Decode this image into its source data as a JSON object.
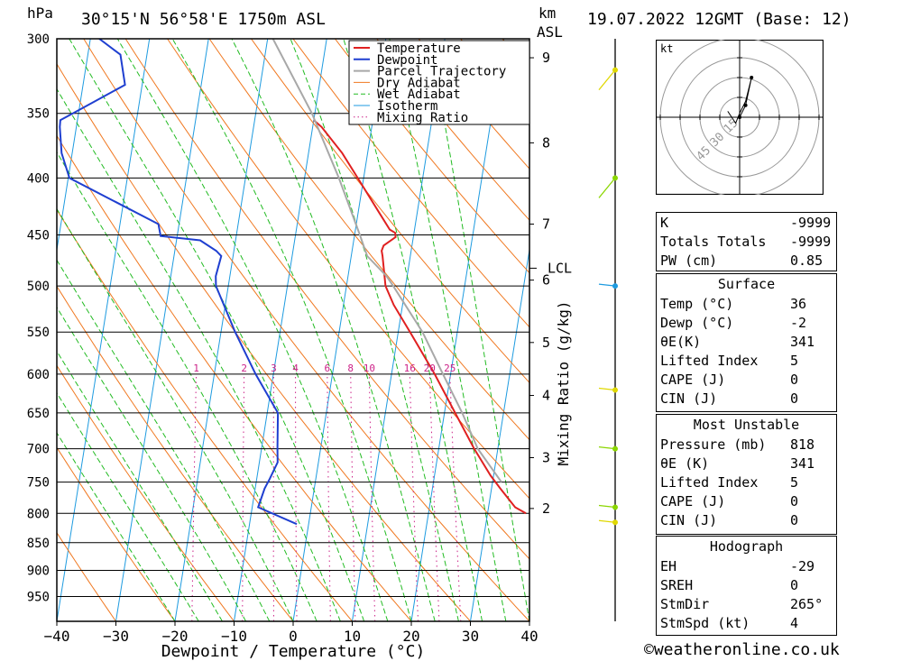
{
  "header": {
    "pressure_unit": "hPa",
    "location": "30°15'N  56°58'E  1750m  ASL",
    "km_unit": "km",
    "asl": "ASL",
    "datetime": "19.07.2022  12GMT  (Base: 12)"
  },
  "chart_data": {
    "type": "line",
    "title": "30°15'N 56°58'E 1750m ASL",
    "xlabel": "Dewpoint / Temperature (°C)",
    "ylabel": "hPa",
    "xlim": [
      -40,
      40
    ],
    "ylim": [
      1000,
      300
    ],
    "skew_per_decade": 30,
    "x_ticks": [
      -40,
      -30,
      -20,
      -10,
      0,
      10,
      20,
      30,
      40
    ],
    "x_tick_labels": [
      "−40",
      "−30",
      "−20",
      "−10",
      "0",
      "10",
      "20",
      "30",
      "40"
    ],
    "pressure_levels": [
      300,
      350,
      400,
      450,
      500,
      550,
      600,
      650,
      700,
      750,
      800,
      850,
      900,
      950
    ],
    "km_labels": [
      {
        "p": 312,
        "label": "9"
      },
      {
        "p": 372,
        "label": "8"
      },
      {
        "p": 440,
        "label": "7"
      },
      {
        "p": 494,
        "label": "6"
      },
      {
        "p": 562,
        "label": "5"
      },
      {
        "p": 627,
        "label": "4"
      },
      {
        "p": 713,
        "label": "3"
      },
      {
        "p": 792,
        "label": "2"
      }
    ],
    "lcl": {
      "p": 482,
      "label": "LCL"
    },
    "mixing_ratio_label": "Mixing Ratio (g/kg)",
    "mixing_ratios": [
      1,
      2,
      3,
      4,
      6,
      8,
      10,
      16,
      20,
      25
    ],
    "mixing_ratio_labels": [
      "1",
      "2",
      "3",
      "4",
      "6",
      "8",
      "10",
      "16",
      "20",
      "25"
    ],
    "legend": [
      "Temperature",
      "Dewpoint",
      "Parcel Trajectory",
      "Dry Adiabat",
      "Wet Adiabat",
      "Isotherm",
      "Mixing Ratio"
    ],
    "colors": {
      "temperature": "#e02020",
      "dewpoint": "#1f3fd0",
      "parcel": "#a8a8a8",
      "dry_adiabat": "#f07820",
      "wet_adiabat": "#22bb22",
      "isotherm": "#1e9be0",
      "mixing_ratio": "#cc2288"
    },
    "series": [
      {
        "name": "Temperature",
        "points": [
          [
            800,
            36.5
          ],
          [
            790,
            34.5
          ],
          [
            760,
            31.5
          ],
          [
            740,
            29.5
          ],
          [
            700,
            26.0
          ],
          [
            650,
            21.8
          ],
          [
            600,
            17.3
          ],
          [
            550,
            12.0
          ],
          [
            520,
            8.5
          ],
          [
            500,
            6.6
          ],
          [
            470,
            5.3
          ],
          [
            465,
            5.0
          ],
          [
            460,
            5.2
          ],
          [
            452,
            7.0
          ],
          [
            448,
            6.8
          ],
          [
            445,
            5.8
          ],
          [
            430,
            3.6
          ],
          [
            400,
            -1.0
          ],
          [
            380,
            -4.3
          ],
          [
            360,
            -8.5
          ],
          [
            355,
            -10.0
          ]
        ]
      },
      {
        "name": "Dewpoint",
        "points": [
          [
            818,
            -2.0
          ],
          [
            790,
            -9.0
          ],
          [
            760,
            -8.4
          ],
          [
            745,
            -7.8
          ],
          [
            720,
            -6.9
          ],
          [
            700,
            -7.3
          ],
          [
            650,
            -8.2
          ],
          [
            600,
            -13.0
          ],
          [
            550,
            -17.6
          ],
          [
            500,
            -22.1
          ],
          [
            490,
            -22.4
          ],
          [
            470,
            -22.0
          ],
          [
            465,
            -23.0
          ],
          [
            455,
            -26.0
          ],
          [
            451,
            -32.8
          ],
          [
            440,
            -33.5
          ],
          [
            400,
            -49.8
          ],
          [
            380,
            -51.8
          ],
          [
            360,
            -52.8
          ],
          [
            355,
            -52.9
          ],
          [
            330,
            -42.9
          ],
          [
            310,
            -44.5
          ],
          [
            300,
            -48.5
          ]
        ]
      },
      {
        "name": "Parcel Trajectory",
        "points": [
          [
            750,
            31.5
          ],
          [
            700,
            26.6
          ],
          [
            650,
            23.0
          ],
          [
            600,
            18.7
          ],
          [
            550,
            14.1
          ],
          [
            500,
            7.9
          ],
          [
            490,
            6.5
          ],
          [
            470,
            2.7
          ],
          [
            450,
            0.9
          ],
          [
            400,
            -4.2
          ],
          [
            350,
            -10.5
          ],
          [
            300,
            -19.1
          ]
        ]
      }
    ]
  },
  "wind_barbs": [
    {
      "p": 320,
      "color": "#e0d800"
    },
    {
      "p": 400,
      "color": "#8bd600"
    },
    {
      "p": 500,
      "color": "#1e9be0"
    },
    {
      "p": 620,
      "color": "#e0d800"
    },
    {
      "p": 700,
      "color": "#8bd600"
    },
    {
      "p": 790,
      "color": "#8bd600"
    },
    {
      "p": 815,
      "color": "#e0d800"
    }
  ],
  "hodograph": {
    "unit": "kt",
    "ring_labels": [
      "15",
      "30",
      "45"
    ],
    "trace": [
      [
        0,
        0
      ],
      [
        3,
        -6
      ],
      [
        6,
        -20
      ],
      [
        3,
        -8
      ],
      [
        0,
        -2
      ],
      [
        -2,
        3
      ],
      [
        -6,
        -3
      ]
    ]
  },
  "indices": {
    "top": [
      {
        "label": "K",
        "value": "-9999"
      },
      {
        "label": "Totals Totals",
        "value": "-9999"
      },
      {
        "label": "PW (cm)",
        "value": "0.85"
      }
    ],
    "surface": {
      "title": "Surface",
      "rows": [
        {
          "label": "Temp (°C)",
          "value": "36"
        },
        {
          "label": "Dewp (°C)",
          "value": "-2"
        },
        {
          "label": "θE(K)",
          "value": "341"
        },
        {
          "label": "Lifted Index",
          "value": "5"
        },
        {
          "label": "CAPE (J)",
          "value": "0"
        },
        {
          "label": "CIN (J)",
          "value": "0"
        }
      ]
    },
    "most_unstable": {
      "title": "Most Unstable",
      "rows": [
        {
          "label": "Pressure (mb)",
          "value": "818"
        },
        {
          "label": "θE (K)",
          "value": "341"
        },
        {
          "label": "Lifted Index",
          "value": "5"
        },
        {
          "label": "CAPE (J)",
          "value": "0"
        },
        {
          "label": "CIN (J)",
          "value": "0"
        }
      ]
    },
    "hodograph": {
      "title": "Hodograph",
      "rows": [
        {
          "label": "EH",
          "value": "-29"
        },
        {
          "label": "SREH",
          "value": "0"
        },
        {
          "label": "StmDir",
          "value": "265°"
        },
        {
          "label": "StmSpd (kt)",
          "value": "4"
        }
      ]
    }
  },
  "credit": "©weatheronline.co.uk"
}
